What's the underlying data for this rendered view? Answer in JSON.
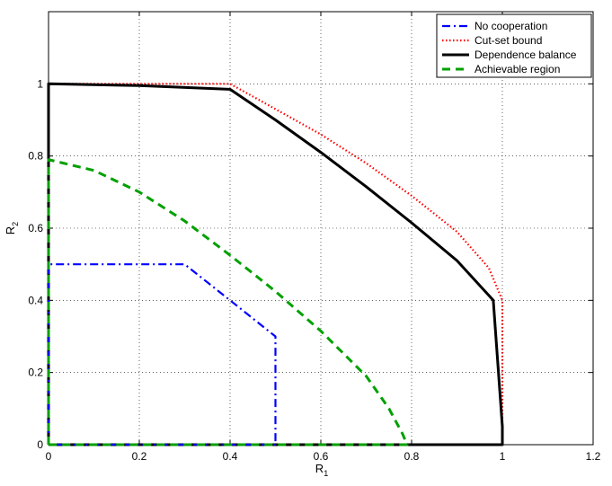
{
  "chart_data": {
    "type": "line",
    "title": "",
    "xlabel": "R",
    "xlabel_sub": "1",
    "ylabel": "R",
    "ylabel_sub": "2",
    "xlim": [
      0,
      1.2
    ],
    "ylim": [
      0,
      1.2
    ],
    "xticks": [
      0,
      0.2,
      0.4,
      0.6,
      0.8,
      1,
      1.2
    ],
    "xtick_labels": [
      "0",
      "0.2",
      "0.4",
      "0.6",
      "0.8",
      "1",
      "1.2"
    ],
    "yticks": [
      0,
      0.2,
      0.4,
      0.6,
      0.8,
      1
    ],
    "ytick_labels": [
      "0",
      "0.2",
      "0.4",
      "0.6",
      "0.8",
      "1"
    ],
    "grid": true,
    "legend_position": "top-right",
    "series": [
      {
        "name": "No cooperation",
        "color": "#0000ff",
        "style": "dash-dot",
        "x": [
          0,
          0,
          0.3,
          0.4,
          0.5,
          0.5,
          0
        ],
        "y": [
          0,
          0.5,
          0.5,
          0.4,
          0.3,
          0,
          0
        ]
      },
      {
        "name": "Cut-set bound",
        "color": "#ff0000",
        "style": "dotted",
        "x": [
          0,
          0,
          0.4,
          0.5,
          0.6,
          0.7,
          0.8,
          0.9,
          0.97,
          1.0,
          1.0,
          0
        ],
        "y": [
          0,
          1.0,
          1.0,
          0.93,
          0.86,
          0.78,
          0.69,
          0.59,
          0.49,
          0.4,
          0,
          0
        ]
      },
      {
        "name": "Dependence balance",
        "color": "#000000",
        "style": "solid",
        "x": [
          0,
          0,
          0.2,
          0.4,
          0.5,
          0.6,
          0.7,
          0.8,
          0.9,
          0.98,
          1.0,
          1.0,
          0
        ],
        "y": [
          0,
          1.0,
          0.995,
          0.985,
          0.9,
          0.81,
          0.715,
          0.615,
          0.51,
          0.4,
          0.05,
          0,
          0
        ]
      },
      {
        "name": "Achievable region",
        "color": "#00a000",
        "style": "dashed",
        "x": [
          0,
          0,
          0.1,
          0.2,
          0.3,
          0.4,
          0.5,
          0.6,
          0.7,
          0.75,
          0.78,
          0.79,
          0
        ],
        "y": [
          0,
          0.79,
          0.76,
          0.7,
          0.62,
          0.525,
          0.425,
          0.315,
          0.19,
          0.1,
          0.03,
          0,
          0
        ]
      }
    ]
  }
}
